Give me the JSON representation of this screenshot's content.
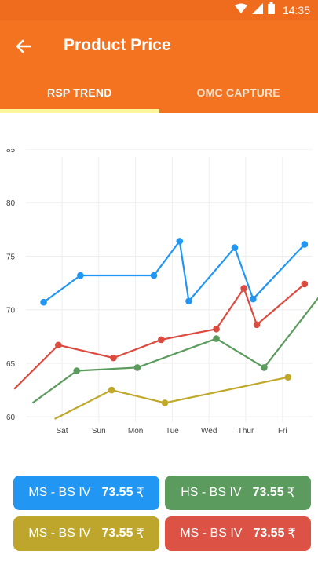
{
  "status_bar": {
    "time": "14:35"
  },
  "app_bar": {
    "title": "Product Price",
    "back_icon": "arrow-back-icon"
  },
  "tabs": [
    {
      "label": "RSP TREND",
      "active": true
    },
    {
      "label": "OMC CAPTURE",
      "active": false
    }
  ],
  "chart_data": {
    "type": "line",
    "y_ticks": [
      "85",
      "80",
      "75",
      "70",
      "65",
      "60"
    ],
    "ylim": [
      59.5,
      85
    ],
    "x_ticks": [
      "Sat",
      "Sun",
      "Mon",
      "Tue",
      "Wed",
      "Thur",
      "Fri"
    ],
    "xlim": [
      -0.5,
      6.35
    ],
    "grid": true,
    "series": [
      {
        "color": "#2196f3",
        "points": [
          [
            -0.5,
            70.7
          ],
          [
            0.5,
            73.2
          ],
          [
            2.5,
            73.2
          ],
          [
            3.2,
            76.4
          ],
          [
            3.45,
            70.8
          ],
          [
            4.7,
            75.8
          ],
          [
            5.2,
            71.0
          ],
          [
            6.6,
            76.1
          ]
        ]
      },
      {
        "color": "#dc4b40",
        "points": [
          [
            -1.3,
            62.6
          ],
          [
            -0.1,
            66.7
          ],
          [
            1.4,
            65.5
          ],
          [
            2.7,
            67.2
          ],
          [
            4.2,
            68.2
          ],
          [
            4.95,
            72.0
          ],
          [
            5.3,
            68.6
          ],
          [
            6.6,
            72.4
          ]
        ]
      },
      {
        "color": "#5c9b5e",
        "points": [
          [
            -0.8,
            61.3
          ],
          [
            0.4,
            64.3
          ],
          [
            2.05,
            64.6
          ],
          [
            4.2,
            67.3
          ],
          [
            5.5,
            64.6
          ],
          [
            7.2,
            72.1
          ]
        ]
      },
      {
        "color": "#c0a82b",
        "points": [
          [
            -0.2,
            59.8
          ],
          [
            1.35,
            62.5
          ],
          [
            2.8,
            61.3
          ],
          [
            6.15,
            63.7
          ]
        ]
      }
    ]
  },
  "cards": [
    {
      "fuel": "MS - BS IV",
      "price": "73.55",
      "currency": "₹",
      "color": "#2196f3"
    },
    {
      "fuel": "HS - BS IV",
      "price": "73.55",
      "currency": "₹",
      "color": "#5c9b5e"
    },
    {
      "fuel": "MS - BS IV",
      "price": "73.55",
      "currency": "₹",
      "color": "#bea62c"
    },
    {
      "fuel": "MS - BS IV",
      "price": "73.55",
      "currency": "₹",
      "color": "#dc5345"
    }
  ]
}
